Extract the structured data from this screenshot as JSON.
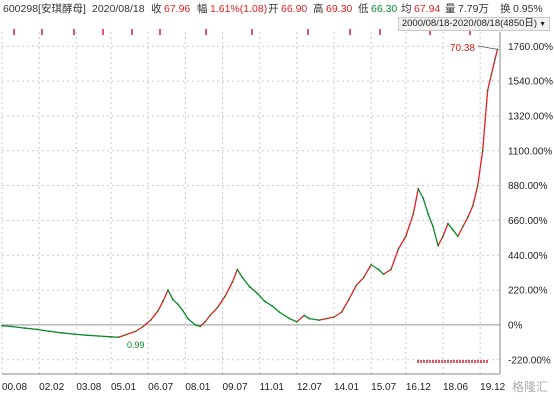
{
  "header": {
    "code_name": "600298[安琪酵母]",
    "date": "2020/08/18",
    "close_label": "收",
    "close_value": "67.96",
    "change_label": "幅",
    "change_value": "1.61%(1.08)",
    "open_label": "开",
    "open_value": "66.90",
    "high_label": "高",
    "high_value": "69.30",
    "low_label": "低",
    "low_value": "66.30",
    "avg_label": "均",
    "avg_value": "67.94",
    "volume_label": "量",
    "volume_value": "7.79万",
    "turnover_label": "换",
    "turnover_value": "0.95%"
  },
  "range_selector": {
    "text": "2000/08/18-2020/08/18(4850日)"
  },
  "annotations": {
    "max_price": "70.38",
    "min_price": "0.99"
  },
  "watermark": "格隆汇",
  "colors": {
    "up": "#e02020",
    "down": "#0a8a2a",
    "grid": "#c8c8c8",
    "zero_line": "#9a9a9a"
  },
  "chart_data": {
    "type": "line",
    "title": "",
    "xlabel": "",
    "ylabel": "",
    "y_unit": "%",
    "ylim": [
      -310,
      1850
    ],
    "y_ticks": [
      "1760.00%",
      "1540.00%",
      "1320.00%",
      "1100.00%",
      "880.00%",
      "660.00%",
      "440.00%",
      "220.00%",
      "0%",
      "-220.00%"
    ],
    "y_tick_values": [
      1760,
      1540,
      1320,
      1100,
      880,
      660,
      440,
      220,
      0,
      -220
    ],
    "x_ticks": [
      "00.08",
      "02.02",
      "03.08",
      "05.01",
      "06.07",
      "08.01",
      "09.07",
      "11.01",
      "12.07",
      "14.01",
      "15.07",
      "16.12",
      "18.06",
      "19.12"
    ],
    "xlim": [
      2000.6,
      2020.7
    ],
    "x_tick_values": [
      2000.6,
      2002.1,
      2003.6,
      2005.0,
      2006.5,
      2008.0,
      2009.5,
      2011.0,
      2012.5,
      2014.0,
      2015.5,
      2016.9,
      2018.4,
      2019.9
    ],
    "series": [
      {
        "values": [
          [
            2000.6,
            -5
          ],
          [
            2001.0,
            -10
          ],
          [
            2001.5,
            -20
          ],
          [
            2002.0,
            -28
          ],
          [
            2002.5,
            -40
          ],
          [
            2003.0,
            -50
          ],
          [
            2003.5,
            -58
          ],
          [
            2004.0,
            -65
          ],
          [
            2004.5,
            -70
          ],
          [
            2005.0,
            -75
          ],
          [
            2005.3,
            -78
          ],
          [
            2005.6,
            -62
          ],
          [
            2006.0,
            -40
          ],
          [
            2006.3,
            -10
          ],
          [
            2006.6,
            30
          ],
          [
            2006.9,
            90
          ],
          [
            2007.1,
            150
          ],
          [
            2007.3,
            220
          ],
          [
            2007.5,
            160
          ],
          [
            2007.7,
            130
          ],
          [
            2007.9,
            90
          ],
          [
            2008.1,
            40
          ],
          [
            2008.4,
            0
          ],
          [
            2008.6,
            -10
          ],
          [
            2008.8,
            20
          ],
          [
            2009.0,
            60
          ],
          [
            2009.3,
            110
          ],
          [
            2009.6,
            180
          ],
          [
            2009.9,
            270
          ],
          [
            2010.1,
            350
          ],
          [
            2010.3,
            300
          ],
          [
            2010.6,
            240
          ],
          [
            2010.9,
            200
          ],
          [
            2011.2,
            150
          ],
          [
            2011.5,
            120
          ],
          [
            2011.8,
            80
          ],
          [
            2012.2,
            40
          ],
          [
            2012.5,
            20
          ],
          [
            2012.8,
            60
          ],
          [
            2013.0,
            40
          ],
          [
            2013.4,
            30
          ],
          [
            2013.7,
            40
          ],
          [
            2014.0,
            50
          ],
          [
            2014.3,
            80
          ],
          [
            2014.6,
            160
          ],
          [
            2014.9,
            250
          ],
          [
            2015.2,
            300
          ],
          [
            2015.5,
            380
          ],
          [
            2015.8,
            350
          ],
          [
            2016.0,
            320
          ],
          [
            2016.3,
            350
          ],
          [
            2016.6,
            480
          ],
          [
            2016.9,
            560
          ],
          [
            2017.2,
            700
          ],
          [
            2017.4,
            860
          ],
          [
            2017.6,
            800
          ],
          [
            2017.8,
            700
          ],
          [
            2018.0,
            620
          ],
          [
            2018.2,
            500
          ],
          [
            2018.4,
            560
          ],
          [
            2018.6,
            640
          ],
          [
            2018.8,
            600
          ],
          [
            2019.0,
            560
          ],
          [
            2019.2,
            620
          ],
          [
            2019.4,
            680
          ],
          [
            2019.6,
            750
          ],
          [
            2019.8,
            880
          ],
          [
            2020.0,
            1100
          ],
          [
            2020.2,
            1480
          ],
          [
            2020.35,
            1580
          ],
          [
            2020.5,
            1680
          ],
          [
            2020.6,
            1740
          ]
        ]
      }
    ],
    "y_gridlines": true,
    "x_gridlines": true
  }
}
